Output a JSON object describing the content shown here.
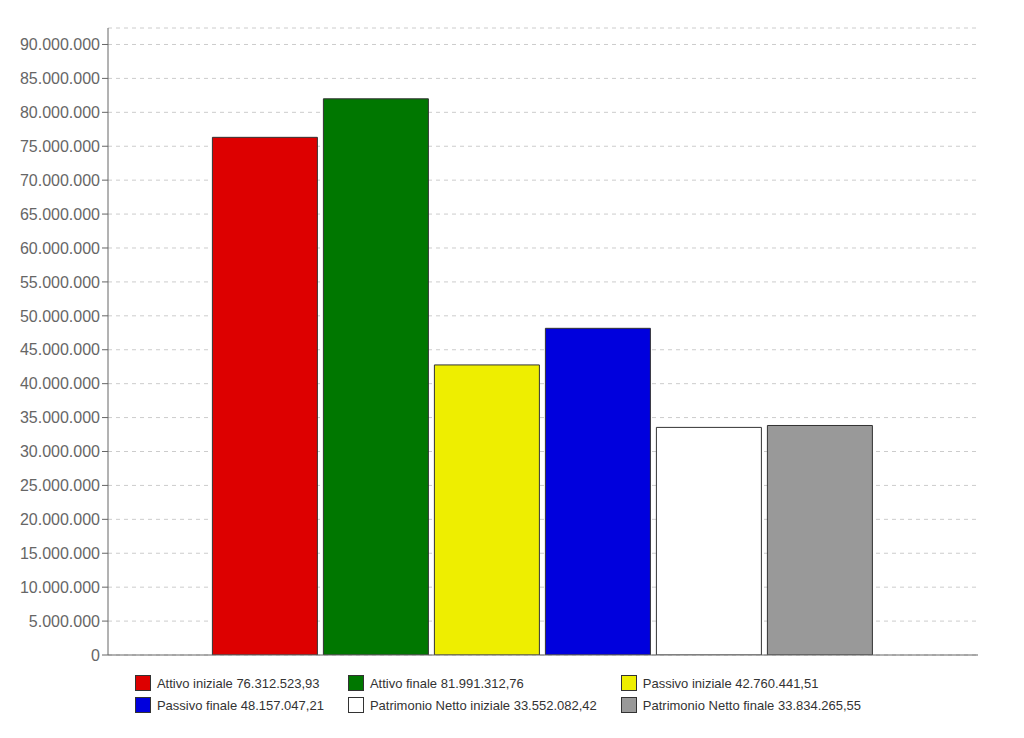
{
  "chart_data": {
    "type": "bar",
    "categories": [
      null
    ],
    "series": [
      {
        "name": "Attivo iniziale 76.312.523,93",
        "color": "#dd0000",
        "values": [
          76312523.93
        ]
      },
      {
        "name": "Attivo finale 81.991.312,76",
        "color": "#007700",
        "values": [
          81991312.76
        ]
      },
      {
        "name": "Passivo iniziale 42.760.441,51",
        "color": "#eeee00",
        "values": [
          42760441.51
        ]
      },
      {
        "name": "Passivo finale 48.157.047,21",
        "color": "#0000dd",
        "values": [
          48157047.21
        ]
      },
      {
        "name": "Patrimonio Netto iniziale 33.552.082,42",
        "color": "#ffffff",
        "values": [
          33552082.42
        ]
      },
      {
        "name": "Patrimonio Netto finale 33.834.265,55",
        "color": "#999999",
        "values": [
          33834265.55
        ]
      }
    ],
    "ylim": [
      0,
      92430000
    ],
    "yticks": [
      0,
      {
        "value": 5000000,
        "label": "5.000.000"
      },
      {
        "value": 10000000,
        "label": "10.000.000"
      },
      {
        "value": 15000000,
        "label": "15.000.000"
      },
      {
        "value": 20000000,
        "label": "20.000.000"
      },
      {
        "value": 25000000,
        "label": "25.000.000"
      },
      {
        "value": 30000000,
        "label": "30.000.000"
      },
      {
        "value": 35000000,
        "label": "35.000.000"
      },
      {
        "value": 40000000,
        "label": "40.000.000"
      },
      {
        "value": 45000000,
        "label": "45.000.000"
      },
      {
        "value": 50000000,
        "label": "50.000.000"
      },
      {
        "value": 55000000,
        "label": "55.000.000"
      },
      {
        "value": 60000000,
        "label": "60.000.000"
      },
      {
        "value": 65000000,
        "label": "65.000.000"
      },
      {
        "value": 70000000,
        "label": "70.000.000"
      },
      {
        "value": 75000000,
        "label": "75.000.000"
      },
      {
        "value": 80000000,
        "label": "80.000.000"
      },
      {
        "value": 85000000,
        "label": "85.000.000"
      },
      {
        "value": 90000000,
        "label": "90.000.000"
      }
    ],
    "grid": true,
    "tick_labels": "y"
  }
}
